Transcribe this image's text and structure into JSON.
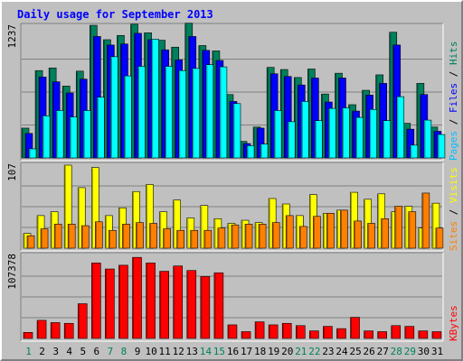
{
  "chart_data": {
    "type": "bar",
    "title": "Daily usage for September 2013",
    "days": [
      "1",
      "2",
      "3",
      "4",
      "5",
      "6",
      "7",
      "8",
      "9",
      "10",
      "11",
      "12",
      "13",
      "14",
      "15",
      "16",
      "17",
      "18",
      "19",
      "20",
      "21",
      "22",
      "23",
      "24",
      "25",
      "26",
      "27",
      "28",
      "29",
      "30",
      "31"
    ],
    "weekend_days": [
      "1",
      "7",
      "8",
      "14",
      "15",
      "21",
      "22",
      "28",
      "29"
    ],
    "panels": [
      {
        "name": "hits-files-pages",
        "max_label": "1237",
        "ymax": 1237,
        "right_labels": [
          {
            "text": "Hits",
            "color": "#00805c"
          },
          {
            "text": " / ",
            "color": "#000000"
          },
          {
            "text": "Files",
            "color": "#0000ff"
          },
          {
            "text": " / ",
            "color": "#000000"
          },
          {
            "text": "Pages",
            "color": "#00c0ff"
          }
        ],
        "series": [
          {
            "name": "Hits",
            "color": "#00805c",
            "values": [
              280,
              820,
              845,
              675,
              815,
              1245,
              1110,
              1150,
              1255,
              1175,
              1105,
              1040,
              1265,
              1055,
              1005,
              595,
              155,
              290,
              850,
              830,
              755,
              835,
              600,
              795,
              500,
              635,
              780,
              1180,
              325,
              700,
              290
            ]
          },
          {
            "name": "Files",
            "color": "#0000ff",
            "values": [
              230,
              760,
              715,
              610,
              740,
              1140,
              1060,
              1070,
              1170,
              1110,
              1015,
              920,
              1140,
              1010,
              915,
              530,
              135,
              280,
              790,
              765,
              685,
              750,
              525,
              750,
              440,
              590,
              700,
              1060,
              270,
              595,
              250
            ]
          },
          {
            "name": "Pages",
            "color": "#00ffff",
            "values": [
              85,
              395,
              445,
              385,
              445,
              570,
              950,
              770,
              860,
              1115,
              860,
              820,
              840,
              875,
              855,
              510,
              115,
              130,
              445,
              340,
              530,
              350,
              465,
              470,
              380,
              455,
              350,
              575,
              120,
              355,
              220
            ]
          }
        ]
      },
      {
        "name": "visits-sites",
        "max_label": "107",
        "ymax": 107,
        "right_labels": [
          {
            "text": "Visits",
            "color": "#ffff00"
          },
          {
            "text": " / ",
            "color": "#000000"
          },
          {
            "text": "Sites",
            "color": "#ff8000"
          }
        ],
        "series": [
          {
            "name": "Visits",
            "color": "#ffff00",
            "values": [
              19,
              42,
              47,
              107,
              78,
              104,
              42,
              52,
              73,
              82,
              47,
              62,
              39,
              55,
              38,
              32,
              36,
              33,
              64,
              57,
              42,
              69,
              45,
              49,
              72,
              63,
              70,
              47,
              54,
              26,
              58
            ]
          },
          {
            "name": "Sites",
            "color": "#ff8000",
            "values": [
              16,
              25,
              31,
              31,
              29,
              34,
              23,
              31,
              33,
              32,
              25,
              23,
              23,
              23,
              26,
              30,
              31,
              31,
              33,
              42,
              28,
              41,
              45,
              49,
              35,
              32,
              38,
              54,
              47,
              71,
              26
            ]
          }
        ]
      },
      {
        "name": "kbytes",
        "max_label": "107378",
        "ymax": 110000,
        "right_labels": [
          {
            "text": "KBytes",
            "color": "#ff0000"
          }
        ],
        "series": [
          {
            "name": "KBytes",
            "color": "#ff0000",
            "values": [
              8000,
              24000,
              21000,
              20000,
              46000,
              100000,
              92000,
              97000,
              107378,
              100000,
              89000,
              96000,
              90000,
              82000,
              87000,
              18000,
              9000,
              22000,
              18000,
              20000,
              17000,
              10000,
              16000,
              13000,
              28000,
              10000,
              9000,
              17000,
              16000,
              10000,
              9000
            ]
          }
        ]
      }
    ]
  }
}
